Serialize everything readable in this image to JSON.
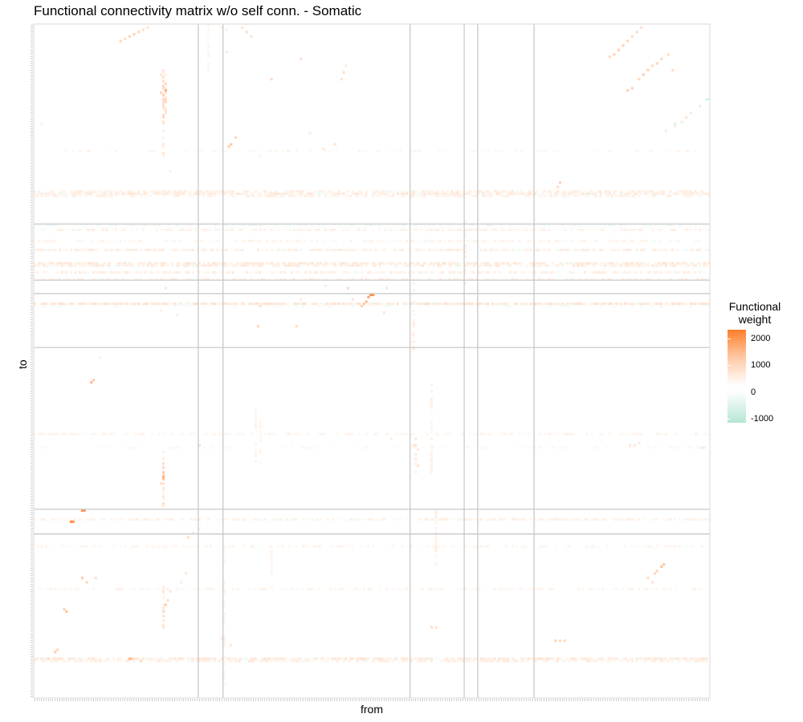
{
  "chart_data": {
    "type": "heatmap",
    "title": "Functional connectivity matrix w/o self conn. - Somatic",
    "xlabel": "from",
    "ylabel": "to",
    "legend": {
      "title_line1": "Functional",
      "title_line2": "weight",
      "ticks": [
        "2000",
        "1000",
        "0",
        "-1000"
      ],
      "tick_values": [
        2000,
        1000,
        0,
        -1000
      ],
      "range": [
        -1000,
        2300
      ],
      "position": "right",
      "colors": {
        "high": "#ff7f2a",
        "mid": "#ffffff",
        "low": "#b4e6d2"
      }
    },
    "matrix_size": 300,
    "group_boundaries_from": [
      73,
      84,
      167,
      191,
      197,
      222
    ],
    "group_boundaries_to": [
      89,
      114,
      120,
      144,
      216,
      227
    ],
    "cells": [
      [
        38,
        7,
        700
      ],
      [
        40,
        6,
        600
      ],
      [
        42,
        5,
        700
      ],
      [
        44,
        4,
        800
      ],
      [
        46,
        3,
        700
      ],
      [
        48,
        2,
        600
      ],
      [
        50,
        1,
        500
      ],
      [
        56,
        22,
        500
      ],
      [
        57,
        27,
        700
      ],
      [
        57,
        31,
        800
      ],
      [
        57,
        33,
        700
      ],
      [
        57,
        36,
        600
      ],
      [
        58,
        29,
        1500
      ],
      [
        56,
        30,
        800
      ],
      [
        58,
        33,
        600
      ],
      [
        136,
        24,
        500
      ],
      [
        137,
        21,
        600
      ],
      [
        138,
        18,
        400
      ],
      [
        255,
        14,
        700
      ],
      [
        257,
        13,
        800
      ],
      [
        259,
        11,
        900
      ],
      [
        261,
        9,
        800
      ],
      [
        263,
        7,
        700
      ],
      [
        265,
        5,
        600
      ],
      [
        267,
        3,
        600
      ],
      [
        269,
        1,
        500
      ],
      [
        270,
        22,
        900
      ],
      [
        272,
        20,
        800
      ],
      [
        274,
        18,
        700
      ],
      [
        276,
        17,
        800
      ],
      [
        278,
        15,
        700
      ],
      [
        281,
        13,
        600
      ],
      [
        263,
        29,
        900
      ],
      [
        265,
        28,
        800
      ],
      [
        268,
        24,
        700
      ],
      [
        283,
        20,
        600
      ],
      [
        287,
        43,
        400
      ],
      [
        289,
        41,
        500
      ],
      [
        291,
        39,
        400
      ],
      [
        284,
        45,
        300
      ],
      [
        92,
        1,
        500
      ],
      [
        94,
        3,
        600
      ],
      [
        96,
        5,
        500
      ],
      [
        85,
        12,
        400
      ],
      [
        118,
        15,
        500
      ],
      [
        105,
        24,
        700
      ],
      [
        87,
        53,
        1000
      ],
      [
        86,
        54,
        900
      ],
      [
        89,
        50,
        700
      ],
      [
        122,
        48,
        400
      ],
      [
        133,
        53,
        500
      ],
      [
        128,
        55,
        400
      ],
      [
        233,
        70,
        800
      ],
      [
        232,
        72,
        600
      ],
      [
        60,
        65,
        300
      ],
      [
        100,
        58,
        300
      ],
      [
        149,
        120,
        2100
      ],
      [
        150,
        120,
        1900
      ],
      [
        148,
        121,
        1600
      ],
      [
        147,
        123,
        1200
      ],
      [
        146,
        124,
        1000
      ],
      [
        145,
        125,
        900
      ],
      [
        139,
        117,
        700
      ],
      [
        141,
        122,
        500
      ],
      [
        129,
        116,
        400
      ],
      [
        116,
        134,
        600
      ],
      [
        118,
        122,
        300
      ],
      [
        57,
        124,
        400
      ],
      [
        58,
        117,
        500
      ],
      [
        56,
        127,
        300
      ],
      [
        63,
        129,
        300
      ],
      [
        99,
        134,
        700
      ],
      [
        100,
        125,
        600
      ],
      [
        25,
        159,
        1300
      ],
      [
        26,
        158,
        1000
      ],
      [
        29,
        148,
        300
      ],
      [
        57,
        201,
        1500
      ],
      [
        57,
        202,
        1100
      ],
      [
        57,
        199,
        900
      ],
      [
        57,
        197,
        700
      ],
      [
        56,
        204,
        600
      ],
      [
        21,
        216,
        2000
      ],
      [
        22,
        216,
        1800
      ],
      [
        16,
        221,
        2100
      ],
      [
        17,
        221,
        1900
      ],
      [
        68,
        228,
        600
      ],
      [
        70,
        226,
        500
      ],
      [
        73,
        224,
        300
      ],
      [
        14,
        261,
        1000
      ],
      [
        13,
        260,
        800
      ],
      [
        21,
        246,
        900
      ],
      [
        23,
        248,
        700
      ],
      [
        27,
        246,
        600
      ],
      [
        42,
        282,
        1400
      ],
      [
        43,
        282,
        900
      ],
      [
        47,
        283,
        700
      ],
      [
        57,
        261,
        700
      ],
      [
        58,
        258,
        900
      ],
      [
        59,
        256,
        600
      ],
      [
        57,
        263,
        500
      ],
      [
        67,
        244,
        500
      ],
      [
        65,
        248,
        400
      ],
      [
        60,
        252,
        400
      ],
      [
        83,
        273,
        500
      ],
      [
        87,
        276,
        400
      ],
      [
        9,
        279,
        900
      ],
      [
        10,
        278,
        700
      ],
      [
        6,
        282,
        700
      ],
      [
        176,
        268,
        600
      ],
      [
        178,
        268,
        500
      ],
      [
        278,
        241,
        1100
      ],
      [
        279,
        240,
        1000
      ],
      [
        276,
        243,
        800
      ],
      [
        275,
        244,
        700
      ],
      [
        272,
        246,
        600
      ],
      [
        274,
        248,
        500
      ],
      [
        231,
        274,
        800
      ],
      [
        233,
        274,
        700
      ],
      [
        235,
        274,
        700
      ],
      [
        168,
        187,
        500
      ],
      [
        170,
        189,
        400
      ],
      [
        158,
        184,
        300
      ],
      [
        170,
        196,
        500
      ],
      [
        174,
        124,
        700
      ],
      [
        156,
        117,
        500
      ],
      [
        155,
        128,
        400
      ],
      [
        264,
        187,
        500
      ],
      [
        266,
        187,
        400
      ],
      [
        268,
        186,
        300
      ],
      [
        298,
        33,
        -600
      ],
      [
        299,
        33,
        -500
      ],
      [
        295,
        36,
        -400
      ],
      [
        280,
        47,
        -400
      ],
      [
        284,
        44,
        -500
      ],
      [
        296,
        188,
        -500
      ],
      [
        297,
        188,
        -400
      ],
      [
        73,
        187,
        -600
      ],
      [
        83,
        1,
        400
      ],
      [
        85,
        2,
        300
      ],
      [
        3,
        44,
        300
      ],
      [
        24,
        56,
        300
      ]
    ],
    "row_bands": [
      {
        "row": 74,
        "v": 300,
        "density": 0.7
      },
      {
        "row": 75,
        "v": 350,
        "density": 0.8
      },
      {
        "row": 76,
        "v": 250,
        "density": 0.6
      },
      {
        "row": 89,
        "v": -200,
        "density": 0.4
      },
      {
        "row": 91,
        "v": 250,
        "density": 0.6
      },
      {
        "row": 96,
        "v": 200,
        "density": 0.5
      },
      {
        "row": 100,
        "v": 300,
        "density": 0.7
      },
      {
        "row": 106,
        "v": 400,
        "density": 0.8
      },
      {
        "row": 107,
        "v": 350,
        "density": 0.7
      },
      {
        "row": 110,
        "v": 300,
        "density": 0.6
      },
      {
        "row": 113,
        "v": 250,
        "density": 0.5
      },
      {
        "row": 124,
        "v": 450,
        "density": 0.9
      },
      {
        "row": 125,
        "v": -150,
        "density": 0.3
      },
      {
        "row": 182,
        "v": 200,
        "density": 0.5
      },
      {
        "row": 220,
        "v": 250,
        "density": 0.6
      },
      {
        "row": 232,
        "v": 200,
        "density": 0.5
      },
      {
        "row": 251,
        "v": 200,
        "density": 0.4
      },
      {
        "row": 282,
        "v": 400,
        "density": 0.8
      },
      {
        "row": 283,
        "v": 300,
        "density": 0.7
      },
      {
        "row": 56,
        "v": 150,
        "density": 0.3
      },
      {
        "row": 188,
        "v": 150,
        "density": 0.3
      }
    ],
    "col_bands": [
      {
        "col": 57,
        "r0": 20,
        "r1": 60,
        "v": 500
      },
      {
        "col": 58,
        "r0": 22,
        "r1": 40,
        "v": 600
      },
      {
        "col": 57,
        "r0": 190,
        "r1": 215,
        "v": 500
      },
      {
        "col": 57,
        "r0": 250,
        "r1": 270,
        "v": 400
      },
      {
        "col": 84,
        "r0": 226,
        "r1": 295,
        "v": 200
      },
      {
        "col": 168,
        "r0": 114,
        "r1": 145,
        "v": 250
      },
      {
        "col": 169,
        "r0": 180,
        "r1": 200,
        "v": 350
      },
      {
        "col": 176,
        "r0": 160,
        "r1": 200,
        "v": 250
      },
      {
        "col": 178,
        "r0": 214,
        "r1": 240,
        "v": 250
      },
      {
        "col": 191,
        "r0": 86,
        "r1": 115,
        "v": 250
      },
      {
        "col": 98,
        "r0": 170,
        "r1": 195,
        "v": 200
      },
      {
        "col": 100,
        "r0": 176,
        "r1": 196,
        "v": 200
      },
      {
        "col": 105,
        "r0": 233,
        "r1": 250,
        "v": 200
      },
      {
        "col": 77,
        "r0": 0,
        "r1": 20,
        "v": 200
      }
    ]
  }
}
